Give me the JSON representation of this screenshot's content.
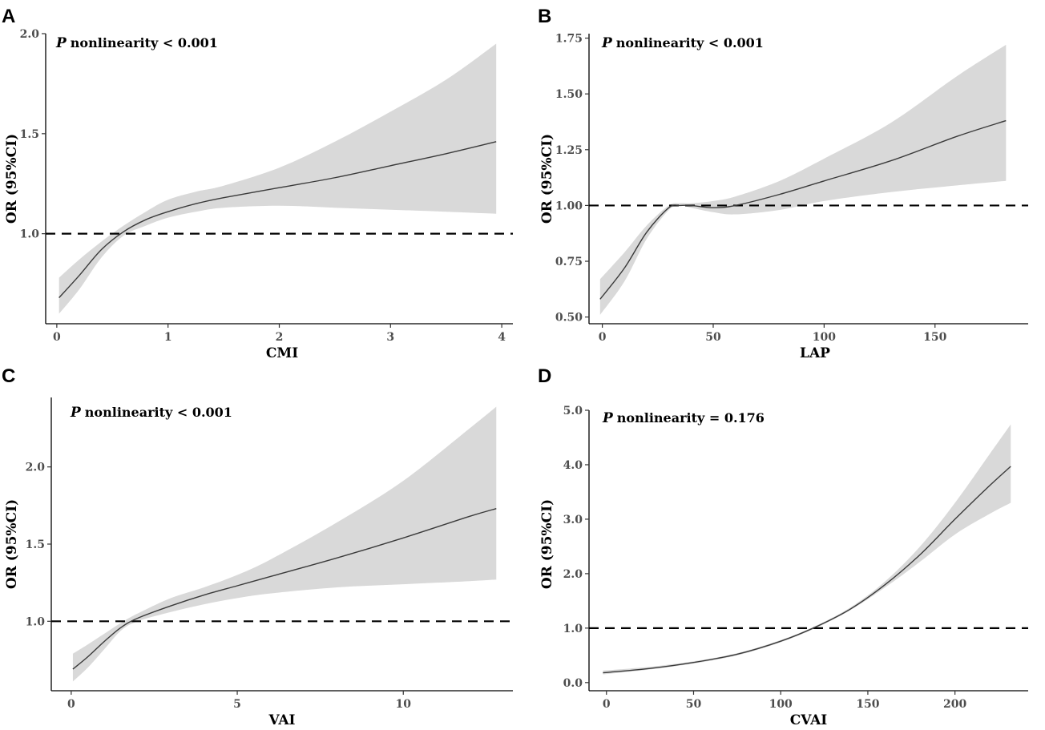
{
  "chart_data": [
    {
      "type": "line",
      "panel": "A",
      "annotation_p": "P",
      "annotation_rest": "nonlinearity < 0.001",
      "xlabel": "CMI",
      "ylabel": "OR (95%CI)",
      "xlim": [
        -0.1,
        4.1
      ],
      "ylim": [
        0.55,
        2.0
      ],
      "xticks": [
        0,
        1,
        2,
        3,
        4
      ],
      "xtick_labels": [
        "0",
        "1",
        "2",
        "3",
        "4"
      ],
      "yticks": [
        1.0,
        1.5,
        2.0
      ],
      "ytick_labels": [
        "1.0",
        "1.5",
        "2.0"
      ],
      "reference_y": 1.0,
      "series": [
        {
          "name": "OR",
          "x": [
            0.02,
            0.2,
            0.4,
            0.6,
            0.8,
            1.0,
            1.25,
            1.5,
            2.0,
            2.5,
            3.0,
            3.5,
            3.95
          ],
          "y": [
            0.68,
            0.79,
            0.92,
            1.01,
            1.07,
            1.11,
            1.15,
            1.18,
            1.23,
            1.28,
            1.34,
            1.4,
            1.46
          ],
          "lower": [
            0.6,
            0.72,
            0.88,
            0.99,
            1.04,
            1.08,
            1.11,
            1.13,
            1.14,
            1.13,
            1.12,
            1.11,
            1.1
          ],
          "upper": [
            0.78,
            0.87,
            0.96,
            1.04,
            1.11,
            1.17,
            1.21,
            1.24,
            1.33,
            1.46,
            1.61,
            1.77,
            1.95
          ]
        }
      ]
    },
    {
      "type": "line",
      "panel": "B",
      "annotation_p": "P",
      "annotation_rest": "nonlinearity < 0.001",
      "xlabel": "LAP",
      "ylabel": "OR (95%CI)",
      "xlim": [
        -6,
        192
      ],
      "ylim": [
        0.47,
        1.77
      ],
      "xticks": [
        0,
        50,
        100,
        150
      ],
      "xtick_labels": [
        "0",
        "50",
        "100",
        "150"
      ],
      "yticks": [
        0.5,
        0.75,
        1.0,
        1.25,
        1.5,
        1.75
      ],
      "ytick_labels": [
        "0.50",
        "0.75",
        "1.00",
        "1.25",
        "1.50",
        "1.75"
      ],
      "reference_y": 1.0,
      "series": [
        {
          "name": "OR",
          "x": [
            -1,
            10,
            20,
            30,
            35,
            40,
            50,
            60,
            80,
            100,
            130,
            160,
            182
          ],
          "y": [
            0.58,
            0.72,
            0.88,
            0.99,
            1.0,
            1.0,
            0.99,
            1.0,
            1.05,
            1.11,
            1.2,
            1.31,
            1.38
          ],
          "lower": [
            0.51,
            0.66,
            0.85,
            0.98,
            1.0,
            0.99,
            0.97,
            0.96,
            0.98,
            1.02,
            1.06,
            1.09,
            1.11
          ],
          "upper": [
            0.67,
            0.79,
            0.91,
            1.0,
            1.01,
            1.01,
            1.02,
            1.04,
            1.11,
            1.21,
            1.37,
            1.58,
            1.72
          ]
        }
      ]
    },
    {
      "type": "line",
      "panel": "C",
      "annotation_p": "P",
      "annotation_rest": "nonlinearity < 0.001",
      "xlabel": "VAI",
      "ylabel": "OR (95%CI)",
      "xlim": [
        -0.6,
        13.3
      ],
      "ylim": [
        0.55,
        2.45
      ],
      "xticks": [
        0,
        5,
        10
      ],
      "xtick_labels": [
        "0",
        "5",
        "10"
      ],
      "yticks": [
        1.0,
        1.5,
        2.0
      ],
      "ytick_labels": [
        "1.0",
        "1.5",
        "2.0"
      ],
      "reference_y": 1.0,
      "series": [
        {
          "name": "OR",
          "x": [
            0.05,
            0.5,
            1.0,
            1.5,
            2.0,
            3.0,
            4.0,
            5.0,
            6.0,
            8.0,
            10.0,
            12.0,
            12.8
          ],
          "y": [
            0.69,
            0.77,
            0.87,
            0.96,
            1.02,
            1.1,
            1.17,
            1.23,
            1.29,
            1.41,
            1.54,
            1.68,
            1.73
          ],
          "lower": [
            0.61,
            0.7,
            0.82,
            0.94,
            1.0,
            1.06,
            1.11,
            1.15,
            1.18,
            1.22,
            1.24,
            1.26,
            1.27
          ],
          "upper": [
            0.79,
            0.85,
            0.92,
            0.99,
            1.05,
            1.15,
            1.22,
            1.3,
            1.4,
            1.64,
            1.91,
            2.25,
            2.39
          ]
        }
      ]
    },
    {
      "type": "line",
      "panel": "D",
      "annotation_p": "P",
      "annotation_rest": "nonlinearity = 0.176",
      "xlabel": "CVAI",
      "ylabel": "OR (95%CI)",
      "xlim": [
        -10,
        242
      ],
      "ylim": [
        -0.15,
        5.0
      ],
      "xticks": [
        0,
        50,
        100,
        150,
        200
      ],
      "xtick_labels": [
        "0",
        "50",
        "100",
        "150",
        "200"
      ],
      "yticks": [
        0.0,
        1.0,
        2.0,
        3.0,
        4.0,
        5.0
      ],
      "ytick_labels": [
        "0.0",
        "1.0",
        "2.0",
        "3.0",
        "4.0",
        "5.0"
      ],
      "reference_y": 1.0,
      "series": [
        {
          "name": "OR",
          "x": [
            -2,
            25,
            50,
            75,
            100,
            120,
            140,
            160,
            180,
            200,
            220,
            232
          ],
          "y": [
            0.18,
            0.26,
            0.37,
            0.52,
            0.76,
            1.02,
            1.35,
            1.8,
            2.35,
            3.0,
            3.62,
            3.97
          ],
          "lower": [
            0.15,
            0.24,
            0.35,
            0.5,
            0.74,
            1.0,
            1.33,
            1.75,
            2.22,
            2.72,
            3.1,
            3.3
          ],
          "upper": [
            0.22,
            0.29,
            0.39,
            0.54,
            0.78,
            1.04,
            1.38,
            1.86,
            2.5,
            3.3,
            4.2,
            4.74
          ]
        }
      ]
    }
  ]
}
